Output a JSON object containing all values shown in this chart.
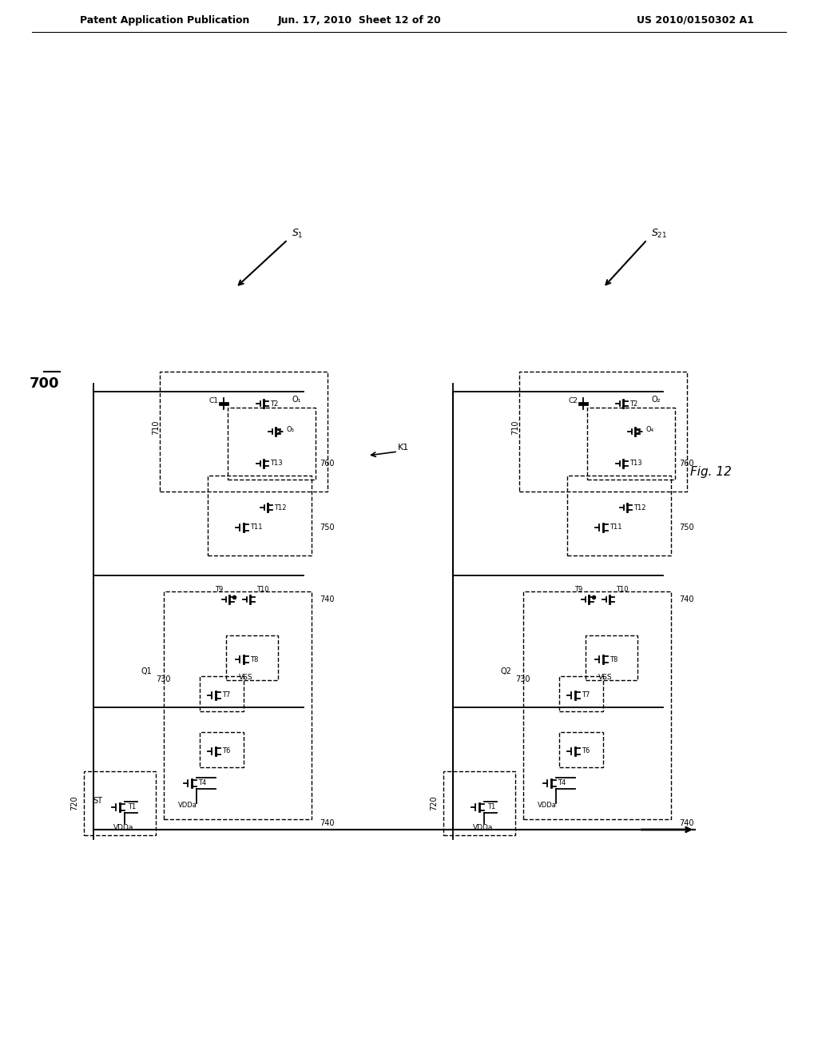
{
  "header_left": "Patent Application Publication",
  "header_center": "Jun. 17, 2010  Sheet 12 of 20",
  "header_right": "US 2010/0150302 A1",
  "figure_label": "Fig. 12",
  "main_label": "700",
  "background_color": "#ffffff",
  "text_color": "#000000",
  "line_color": "#000000",
  "dashed_color": "#000000"
}
